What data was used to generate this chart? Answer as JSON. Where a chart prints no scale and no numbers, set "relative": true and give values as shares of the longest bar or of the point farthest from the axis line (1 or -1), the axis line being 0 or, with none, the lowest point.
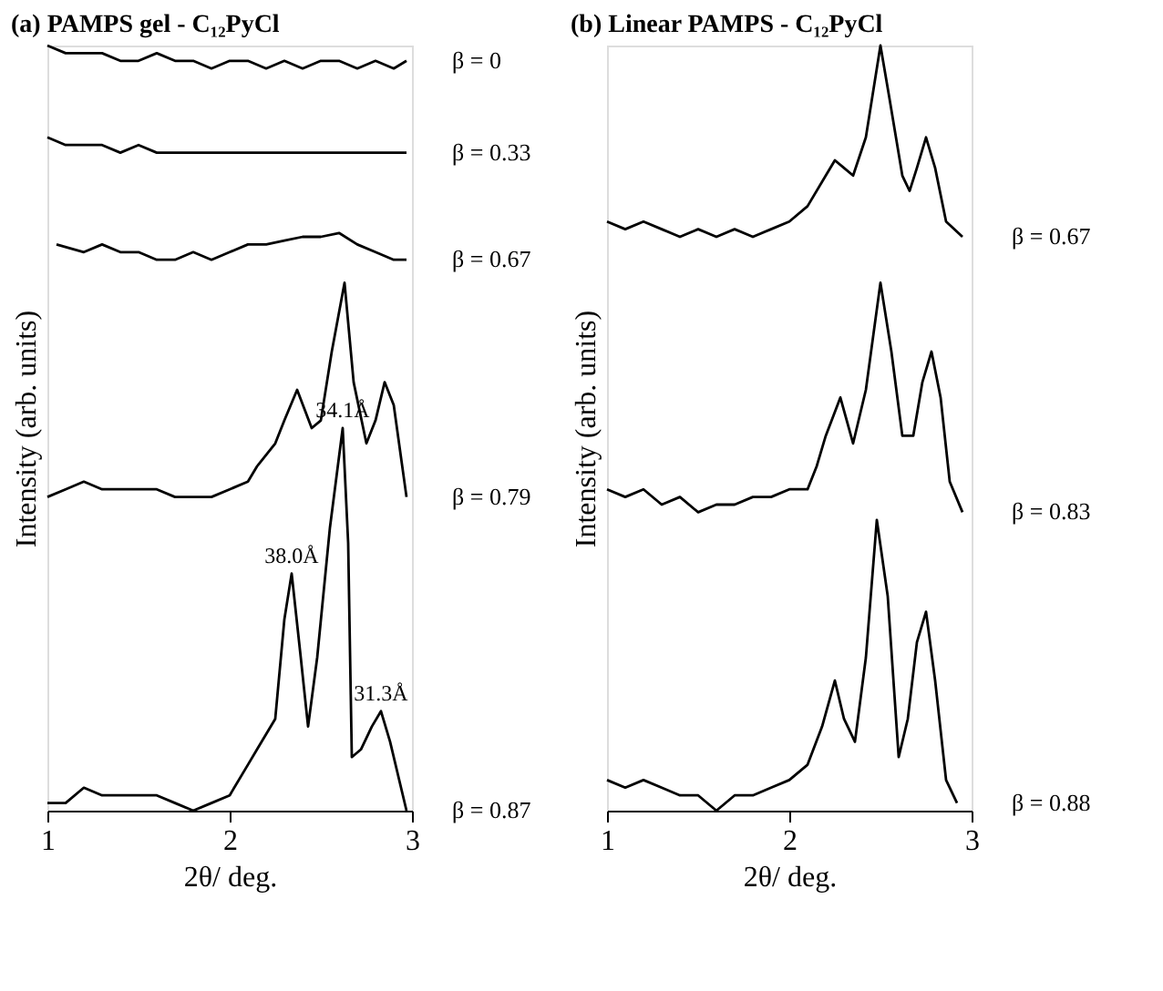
{
  "chart_data": [
    {
      "type": "line",
      "title": "(a) PAMPS gel - C₁₂PyCl",
      "xlabel": "2θ/ deg.",
      "ylabel": "Intensity (arb. units)",
      "relative": true,
      "xlim": [
        1,
        3
      ],
      "xticks": [
        1,
        2,
        3
      ],
      "tick_labels": "x",
      "legend": "right",
      "grid": false,
      "marker": "none",
      "series": [
        {
          "name": "β = 0",
          "color": "#000000",
          "x": [
            1.0,
            1.1,
            1.2,
            1.3,
            1.4,
            1.5,
            1.6,
            1.7,
            1.8,
            1.9,
            2.0,
            2.1,
            2.2,
            2.3,
            2.4,
            2.5,
            2.6,
            2.7,
            2.8,
            2.9,
            2.97
          ],
          "values": [
            1.0,
            0.99,
            0.99,
            0.99,
            0.98,
            0.98,
            0.99,
            0.98,
            0.98,
            0.97,
            0.98,
            0.98,
            0.97,
            0.98,
            0.97,
            0.98,
            0.98,
            0.97,
            0.98,
            0.97,
            0.98
          ]
        },
        {
          "name": "β = 0.33",
          "color": "#000000",
          "x": [
            1.0,
            1.1,
            1.2,
            1.3,
            1.4,
            1.5,
            1.6,
            1.7,
            1.8,
            1.9,
            2.0,
            2.1,
            2.2,
            2.3,
            2.4,
            2.5,
            2.6,
            2.7,
            2.8,
            2.9,
            2.97
          ],
          "values": [
            0.88,
            0.87,
            0.87,
            0.87,
            0.86,
            0.87,
            0.86,
            0.86,
            0.86,
            0.86,
            0.86,
            0.86,
            0.86,
            0.86,
            0.86,
            0.86,
            0.86,
            0.86,
            0.86,
            0.86,
            0.86
          ]
        },
        {
          "name": "β = 0.67",
          "color": "#000000",
          "x": [
            1.05,
            1.2,
            1.3,
            1.4,
            1.5,
            1.6,
            1.7,
            1.8,
            1.9,
            2.0,
            2.1,
            2.2,
            2.3,
            2.4,
            2.5,
            2.6,
            2.7,
            2.8,
            2.9,
            2.97
          ],
          "values": [
            0.74,
            0.73,
            0.74,
            0.73,
            0.73,
            0.72,
            0.72,
            0.73,
            0.72,
            0.73,
            0.74,
            0.74,
            0.745,
            0.75,
            0.75,
            0.755,
            0.74,
            0.73,
            0.72,
            0.72
          ]
        },
        {
          "name": "β = 0.79",
          "color": "#000000",
          "x": [
            1.0,
            1.1,
            1.2,
            1.3,
            1.4,
            1.5,
            1.6,
            1.7,
            1.8,
            1.9,
            2.0,
            2.1,
            2.15,
            2.25,
            2.3,
            2.37,
            2.45,
            2.5,
            2.56,
            2.63,
            2.68,
            2.75,
            2.8,
            2.85,
            2.9,
            2.97
          ],
          "values": [
            0.41,
            0.42,
            0.43,
            0.42,
            0.42,
            0.42,
            0.42,
            0.41,
            0.41,
            0.41,
            0.42,
            0.43,
            0.45,
            0.48,
            0.51,
            0.55,
            0.5,
            0.51,
            0.6,
            0.69,
            0.56,
            0.48,
            0.51,
            0.56,
            0.53,
            0.41
          ]
        },
        {
          "name": "β = 0.87",
          "color": "#000000",
          "x": [
            1.0,
            1.1,
            1.2,
            1.3,
            1.4,
            1.5,
            1.6,
            1.7,
            1.8,
            1.9,
            2.0,
            2.1,
            2.15,
            2.2,
            2.25,
            2.3,
            2.34,
            2.39,
            2.43,
            2.48,
            2.55,
            2.62,
            2.65,
            2.67,
            2.72,
            2.78,
            2.83,
            2.88,
            2.97
          ],
          "values": [
            0.01,
            0.01,
            0.03,
            0.02,
            0.02,
            0.02,
            0.02,
            0.01,
            0.0,
            0.01,
            0.02,
            0.06,
            0.08,
            0.1,
            0.12,
            0.25,
            0.31,
            0.2,
            0.11,
            0.2,
            0.37,
            0.5,
            0.35,
            0.07,
            0.08,
            0.11,
            0.13,
            0.09,
            0.0
          ]
        }
      ],
      "annotations": [
        {
          "text": "38.0Å",
          "x": 2.34,
          "y": 0.31
        },
        {
          "text": "34.1Å",
          "x": 2.62,
          "y": 0.5
        },
        {
          "text": "31.3Å",
          "x": 2.83,
          "y": 0.13
        }
      ]
    },
    {
      "type": "line",
      "title": "(b) Linear PAMPS - C₁₂PyCl",
      "xlabel": "2θ/ deg.",
      "ylabel": "Intensity (arb. units)",
      "relative": true,
      "xlim": [
        1,
        3
      ],
      "xticks": [
        1,
        2,
        3
      ],
      "tick_labels": "x",
      "legend": "right",
      "grid": false,
      "marker": "none",
      "series": [
        {
          "name": "β = 0.67",
          "color": "#000000",
          "x": [
            1.0,
            1.1,
            1.2,
            1.3,
            1.4,
            1.5,
            1.6,
            1.7,
            1.8,
            1.9,
            2.0,
            2.1,
            2.2,
            2.25,
            2.3,
            2.35,
            2.42,
            2.5,
            2.55,
            2.62,
            2.66,
            2.7,
            2.75,
            2.8,
            2.86,
            2.95
          ],
          "values": [
            0.77,
            0.76,
            0.77,
            0.76,
            0.75,
            0.76,
            0.75,
            0.76,
            0.75,
            0.76,
            0.77,
            0.79,
            0.83,
            0.85,
            0.84,
            0.83,
            0.88,
            1.0,
            0.93,
            0.83,
            0.81,
            0.84,
            0.88,
            0.84,
            0.77,
            0.75
          ]
        },
        {
          "name": "β = 0.83",
          "color": "#000000",
          "x": [
            1.0,
            1.1,
            1.2,
            1.3,
            1.4,
            1.5,
            1.6,
            1.7,
            1.8,
            1.9,
            2.0,
            2.1,
            2.15,
            2.2,
            2.28,
            2.35,
            2.42,
            2.5,
            2.56,
            2.62,
            2.68,
            2.73,
            2.78,
            2.83,
            2.88,
            2.95
          ],
          "values": [
            0.42,
            0.41,
            0.42,
            0.4,
            0.41,
            0.39,
            0.4,
            0.4,
            0.41,
            0.41,
            0.42,
            0.42,
            0.45,
            0.49,
            0.54,
            0.48,
            0.55,
            0.69,
            0.6,
            0.49,
            0.49,
            0.56,
            0.6,
            0.54,
            0.43,
            0.39
          ]
        },
        {
          "name": "β = 0.88",
          "color": "#000000",
          "x": [
            1.0,
            1.1,
            1.2,
            1.3,
            1.4,
            1.5,
            1.6,
            1.7,
            1.8,
            1.9,
            2.0,
            2.1,
            2.18,
            2.25,
            2.3,
            2.36,
            2.42,
            2.48,
            2.54,
            2.6,
            2.65,
            2.7,
            2.75,
            2.8,
            2.86,
            2.92
          ],
          "values": [
            0.04,
            0.03,
            0.04,
            0.03,
            0.02,
            0.02,
            0.0,
            0.02,
            0.02,
            0.03,
            0.04,
            0.06,
            0.11,
            0.17,
            0.12,
            0.09,
            0.2,
            0.38,
            0.28,
            0.07,
            0.12,
            0.22,
            0.26,
            0.17,
            0.04,
            0.01
          ]
        }
      ]
    }
  ]
}
